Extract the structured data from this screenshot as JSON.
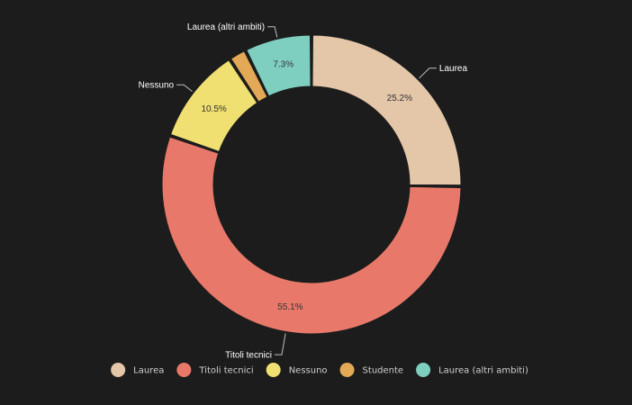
{
  "chart_data": {
    "type": "pie",
    "donut": true,
    "categories": [
      "Laurea",
      "Titoli tecnici",
      "Nessuno",
      "Studente",
      "Laurea (altri ambiti)"
    ],
    "values": [
      25.2,
      55.1,
      10.5,
      1.9,
      7.3
    ],
    "value_labels": [
      "25.2%",
      "55.1%",
      "10.5%",
      "",
      "7.3%"
    ],
    "colors": [
      "#e4c6a9",
      "#e8796a",
      "#f0e072",
      "#e3a957",
      "#7fcfc0"
    ],
    "legend": {
      "position": "bottom",
      "entries": [
        "Laurea",
        "Titoli tecnici",
        "Nessuno",
        "Studente",
        "Laurea (altri ambiti)"
      ]
    },
    "callouts": {
      "Laurea": "Laurea",
      "Titoli tecnici": "Titoli tecnici",
      "Nessuno": "Nessuno",
      "Laurea (altri ambiti)": "Laurea (altri ambiti)"
    },
    "background": "#1c1c1c"
  }
}
